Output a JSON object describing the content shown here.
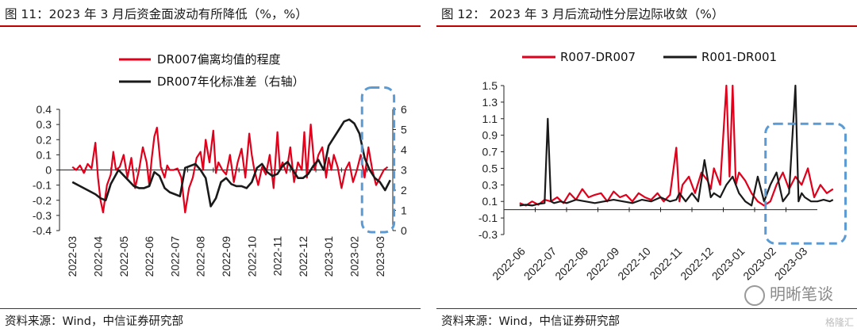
{
  "left": {
    "title": "图 11：2023 年 3 月后资金面波动有所降低（%，%）",
    "source": "资料来源：Wind，中信证券研究部",
    "chart_data": {
      "type": "line",
      "legend": [
        {
          "name": "DR007偏离均值的程度",
          "color": "#e0001b"
        },
        {
          "name": "DR007年化标准差（右轴）",
          "color": "#1a1a1a"
        }
      ],
      "categories": [
        "2022-03",
        "2022-04",
        "2022-05",
        "2022-06",
        "2022-07",
        "2022-08",
        "2022-09",
        "2022-10",
        "2022-11",
        "2022-12",
        "2023-01",
        "2023-02",
        "2023-03"
      ],
      "ylim_left": [
        -0.4,
        0.4
      ],
      "yticks_left": [
        "-0.4",
        "-0.3",
        "-0.2",
        "-0.1",
        "0",
        "0.1",
        "0.2",
        "0.3",
        "0.4"
      ],
      "ylim_right": [
        0,
        6
      ],
      "yticks_right": [
        "0",
        "1",
        "2",
        "3",
        "4",
        "5",
        "6"
      ],
      "series": [
        {
          "name": "DR007偏离均值的程度",
          "axis": "left",
          "color": "#e0001b",
          "x": [
            0,
            0.15,
            0.3,
            0.45,
            0.6,
            0.75,
            0.9,
            1.0,
            1.1,
            1.2,
            1.35,
            1.5,
            1.6,
            1.7,
            1.85,
            2.0,
            2.15,
            2.3,
            2.45,
            2.6,
            2.75,
            2.9,
            3.0,
            3.1,
            3.2,
            3.3,
            3.45,
            3.6,
            3.7,
            3.8,
            3.95,
            4.1,
            4.25,
            4.4,
            4.55,
            4.7,
            4.85,
            5.0,
            5.1,
            5.2,
            5.35,
            5.5,
            5.6,
            5.7,
            5.85,
            6.0,
            6.15,
            6.3,
            6.45,
            6.6,
            6.75,
            6.9,
            7.0,
            7.1,
            7.25,
            7.4,
            7.55,
            7.7,
            7.85,
            8.0,
            8.1,
            8.2,
            8.35,
            8.5,
            8.65,
            8.8,
            8.95,
            9.05,
            9.15,
            9.3,
            9.45,
            9.6,
            9.75,
            9.9,
            10.0,
            10.1,
            10.2,
            10.35,
            10.5,
            10.65,
            10.8,
            10.95,
            11.1,
            11.25,
            11.4,
            11.55,
            11.7,
            11.85,
            12.0,
            12.15,
            12.3
          ],
          "values": [
            0.02,
            0.0,
            0.03,
            -0.02,
            0.04,
            0.01,
            0.18,
            -0.05,
            -0.2,
            -0.28,
            -0.1,
            -0.03,
            0.12,
            0.0,
            0.02,
            0.1,
            -0.05,
            0.08,
            -0.12,
            0.0,
            0.15,
            0.05,
            -0.1,
            0.08,
            0.22,
            0.28,
            0.02,
            -0.05,
            0.03,
            0.0,
            0.0,
            0.01,
            -0.05,
            -0.28,
            -0.12,
            -0.05,
            0.08,
            0.12,
            0.0,
            0.2,
            0.05,
            0.26,
            -0.02,
            0.05,
            0.0,
            -0.03,
            0.1,
            -0.08,
            0.05,
            0.14,
            -0.05,
            0.24,
            0.1,
            0.0,
            -0.1,
            0.02,
            -0.03,
            0.1,
            -0.12,
            0.25,
            0.0,
            0.05,
            -0.02,
            0.15,
            -0.08,
            0.05,
            0.0,
            0.25,
            -0.05,
            0.3,
            0.0,
            0.1,
            0.15,
            -0.05,
            0.08,
            0.0,
            0.1,
            0.02,
            -0.12,
            0.0,
            0.05,
            -0.08,
            0.0,
            0.1,
            -0.05,
            0.15,
            0.0,
            -0.1,
            -0.05,
            0.0,
            0.02
          ]
        },
        {
          "name": "DR007年化标准差（右轴）",
          "axis": "right",
          "color": "#1a1a1a",
          "x": [
            0,
            0.3,
            0.6,
            0.9,
            1.1,
            1.3,
            1.5,
            1.8,
            2.1,
            2.4,
            2.6,
            2.8,
            3.0,
            3.2,
            3.4,
            3.6,
            3.8,
            4.0,
            4.2,
            4.4,
            4.6,
            4.8,
            5.0,
            5.2,
            5.4,
            5.6,
            5.8,
            6.0,
            6.2,
            6.4,
            6.6,
            6.8,
            7.0,
            7.2,
            7.4,
            7.6,
            7.8,
            8.0,
            8.2,
            8.4,
            8.6,
            8.8,
            9.0,
            9.2,
            9.4,
            9.6,
            9.8,
            10.0,
            10.2,
            10.4,
            10.6,
            10.8,
            11.0,
            11.2,
            11.4,
            11.6,
            11.8,
            12.0,
            12.2,
            12.4
          ],
          "values": [
            2.4,
            2.2,
            2.0,
            1.8,
            1.6,
            1.5,
            2.3,
            3.0,
            2.6,
            2.2,
            2.1,
            2.1,
            2.2,
            2.9,
            2.7,
            2.1,
            1.9,
            1.8,
            1.7,
            3.1,
            3.2,
            3.3,
            3.0,
            2.6,
            1.2,
            1.6,
            2.4,
            2.6,
            2.3,
            2.2,
            2.2,
            2.1,
            2.4,
            3.1,
            3.3,
            2.9,
            2.7,
            2.8,
            3.2,
            3.4,
            3.0,
            2.6,
            2.6,
            2.8,
            3.2,
            3.5,
            3.0,
            4.2,
            4.6,
            5.0,
            5.4,
            5.5,
            5.3,
            4.8,
            3.6,
            3.0,
            2.6,
            2.4,
            2.0,
            2.5
          ]
        }
      ],
      "annotation": {
        "type": "dashed-box",
        "color": "#5b9bd5",
        "x_from": 11.3,
        "x_to": 12.55,
        "y_from": -0.4,
        "y_to": 0.45
      }
    }
  },
  "right": {
    "title": "图 12：  2023 年 3 月后流动性分层边际收敛（%）",
    "source": "资料来源：Wind，中信证券研究部",
    "watermark": "明晰笔谈",
    "corner_logo": "格隆汇",
    "chart_data": {
      "type": "line",
      "legend": [
        {
          "name": "R007-DR007",
          "color": "#e0001b"
        },
        {
          "name": "R001-DR001",
          "color": "#1a1a1a"
        }
      ],
      "categories": [
        "2022-06",
        "2022-07",
        "2022-08",
        "2022-09",
        "2022-10",
        "2022-11",
        "2022-12",
        "2023-01",
        "2023-02",
        "2023-03"
      ],
      "ylim": [
        -0.3,
        1.5
      ],
      "yticks": [
        "-0.3",
        "-0.1",
        "0.1",
        "0.3",
        "0.5",
        "0.7",
        "0.9",
        "1.1",
        "1.3",
        "1.5"
      ],
      "series": [
        {
          "name": "R007-DR007",
          "color": "#e0001b",
          "x": [
            0,
            0.2,
            0.4,
            0.6,
            0.8,
            1.0,
            1.2,
            1.4,
            1.6,
            1.8,
            2.0,
            2.2,
            2.4,
            2.6,
            2.8,
            3.0,
            3.2,
            3.4,
            3.6,
            3.8,
            4.0,
            4.2,
            4.4,
            4.6,
            4.8,
            5.0,
            5.1,
            5.2,
            5.4,
            5.6,
            5.8,
            6.0,
            6.1,
            6.2,
            6.4,
            6.6,
            6.7,
            6.8,
            6.9,
            7.0,
            7.2,
            7.4,
            7.6,
            7.8,
            8.0,
            8.2,
            8.4,
            8.6,
            8.8,
            9.0,
            9.2,
            9.4,
            9.6,
            9.8,
            10.0
          ],
          "values": [
            0.08,
            0.05,
            0.1,
            0.06,
            0.12,
            0.1,
            0.15,
            0.08,
            0.2,
            0.12,
            0.25,
            0.15,
            0.18,
            0.2,
            0.1,
            0.22,
            0.15,
            0.18,
            0.1,
            0.2,
            0.15,
            0.12,
            0.2,
            0.1,
            0.18,
            0.75,
            0.1,
            0.3,
            0.4,
            0.2,
            0.45,
            0.35,
            0.25,
            0.5,
            0.3,
            1.5,
            0.4,
            1.5,
            0.3,
            0.45,
            0.35,
            0.2,
            0.1,
            0.05,
            0.1,
            0.3,
            0.45,
            0.25,
            0.4,
            0.3,
            0.5,
            0.15,
            0.3,
            0.2,
            0.25
          ]
        },
        {
          "name": "R001-DR001",
          "color": "#1a1a1a",
          "x": [
            0,
            0.2,
            0.4,
            0.6,
            0.8,
            0.9,
            1.0,
            1.1,
            1.3,
            1.5,
            1.8,
            2.1,
            2.4,
            2.7,
            3.0,
            3.3,
            3.6,
            3.9,
            4.2,
            4.5,
            4.8,
            5.0,
            5.1,
            5.3,
            5.5,
            5.7,
            5.9,
            6.1,
            6.2,
            6.4,
            6.6,
            6.8,
            7.0,
            7.2,
            7.4,
            7.6,
            7.8,
            8.0,
            8.2,
            8.4,
            8.6,
            8.8,
            8.9,
            9.0,
            9.1,
            9.3,
            9.5,
            9.7,
            9.9,
            10.0
          ],
          "values": [
            0.05,
            0.06,
            0.05,
            0.07,
            0.08,
            1.1,
            0.1,
            0.08,
            0.1,
            0.08,
            0.12,
            0.1,
            0.08,
            0.1,
            0.12,
            0.1,
            0.08,
            0.12,
            0.1,
            0.15,
            0.1,
            0.12,
            0.2,
            0.1,
            0.2,
            0.1,
            0.6,
            0.15,
            0.2,
            0.15,
            0.3,
            0.4,
            0.2,
            0.1,
            0.05,
            0.4,
            0.1,
            0.3,
            0.45,
            0.1,
            0.2,
            1.5,
            0.1,
            0.2,
            0.15,
            0.1,
            0.1,
            0.12,
            0.1,
            0.12
          ]
        }
      ],
      "annotation": {
        "type": "dashed-box",
        "color": "#5b9bd5",
        "x_from": 8.05,
        "x_to": 10.4,
        "y_from": -0.35,
        "y_to": 1.0
      }
    }
  }
}
